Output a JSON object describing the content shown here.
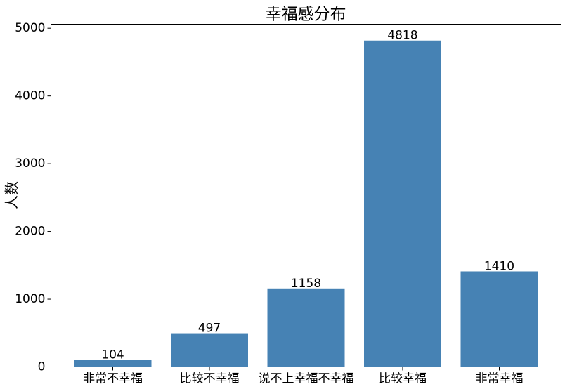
{
  "chart_data": {
    "type": "bar",
    "title": "幸福感分布",
    "ylabel": "人数",
    "categories": [
      "非常不幸福",
      "比较不幸福",
      "说不上幸福不幸福",
      "比较幸福",
      "非常幸福"
    ],
    "values": [
      104,
      497,
      1158,
      4818,
      1410
    ],
    "color": "#4682b4",
    "ylim": [
      0,
      5059
    ],
    "yticks": [
      0,
      1000,
      2000,
      3000,
      4000,
      5000
    ]
  }
}
